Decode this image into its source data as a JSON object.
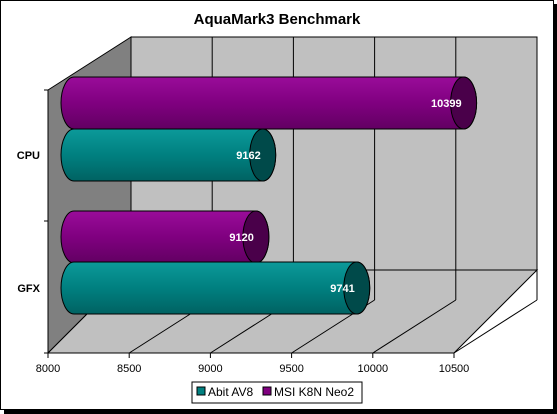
{
  "chart_data": {
    "type": "bar",
    "orientation": "horizontal",
    "style": "3d-cylinder",
    "title": "AquaMark3 Benchmark",
    "categories": [
      "CPU",
      "GFX"
    ],
    "series": [
      {
        "name": "Abit AV8",
        "color": "#008080",
        "values": [
          9162,
          9741
        ]
      },
      {
        "name": "MSI K8N Neo2",
        "color": "#800080",
        "values": [
          10399,
          9120
        ]
      }
    ],
    "xlim": [
      8000,
      10500
    ],
    "xticks": [
      "8000",
      "8500",
      "9000",
      "9500",
      "10000",
      "10500"
    ],
    "grid": true,
    "legend_position": "bottom"
  },
  "colors": {
    "background": "#ffffff",
    "plot_wall": "#c0c0c0",
    "side_wall": "#808080",
    "floor": "#c0c0c0",
    "gridline": "#000000",
    "teal": "#008080",
    "purple": "#800080"
  }
}
